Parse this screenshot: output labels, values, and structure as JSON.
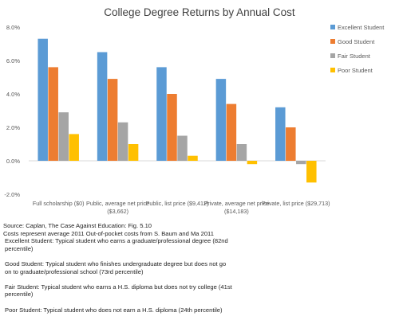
{
  "chart_data": {
    "type": "bar",
    "title": "College Degree Returns by Annual Cost",
    "xlabel": "",
    "ylabel": "",
    "ylim": [
      -2.0,
      8.0
    ],
    "yticks": [
      "8.0%",
      "6.0%",
      "4.0%",
      "2.0%",
      "0.0%",
      "-2.0%"
    ],
    "ytick_values": [
      8,
      6,
      4,
      2,
      0,
      -2
    ],
    "grid": false,
    "legend_position": "right",
    "categories": [
      "Full scholarship ($0)",
      "Public, average net price ($3,662)",
      "Public, list price ($9,412)",
      "Private, average net price ($14,183)",
      "Private, list price ($29,713)"
    ],
    "category_label_lines": [
      [
        "Full scholarship ($0)"
      ],
      [
        "Public, average net price",
        "($3,662)"
      ],
      [
        "Public, list price ($9,412)"
      ],
      [
        "Private, average net price",
        "($14,183)"
      ],
      [
        "Private, list price ($29,713)"
      ]
    ],
    "series": [
      {
        "name": "Excellent Student",
        "color": "#5b9bd5",
        "values": [
          7.3,
          6.5,
          5.6,
          4.9,
          3.2
        ]
      },
      {
        "name": "Good Student",
        "color": "#ed7d31",
        "values": [
          5.6,
          4.9,
          4.0,
          3.4,
          2.0
        ]
      },
      {
        "name": "Fair Student",
        "color": "#a5a5a5",
        "values": [
          2.9,
          2.3,
          1.5,
          1.0,
          -0.2
        ]
      },
      {
        "name": "Poor Student",
        "color": "#ffc000",
        "values": [
          1.6,
          1.0,
          0.3,
          -0.2,
          -1.3
        ]
      }
    ]
  },
  "notes": {
    "source": "Source: Caplan, The Case Against Education: Fig. 5.10",
    "costs": "Costs represent average 2011 Out-of-pocket costs from S. Baum and Ma 2011",
    "excellent_1": "Excellent Student: Typical student who earns a graduate/professional degree (82nd",
    "excellent_2": "percentile)",
    "good_1": "Good Student: Typical student who finishes undergraduate degree but does not go",
    "good_2": "on to graduate/professional school (73rd percentile)",
    "fair_1": "Fair Student: Typical student who earns a H.S. diploma but does not try college (41st",
    "fair_2": "percentile)",
    "poor_1": "Poor Student: Typical student who does not earn a H.S. diploma (24th percentile)"
  }
}
